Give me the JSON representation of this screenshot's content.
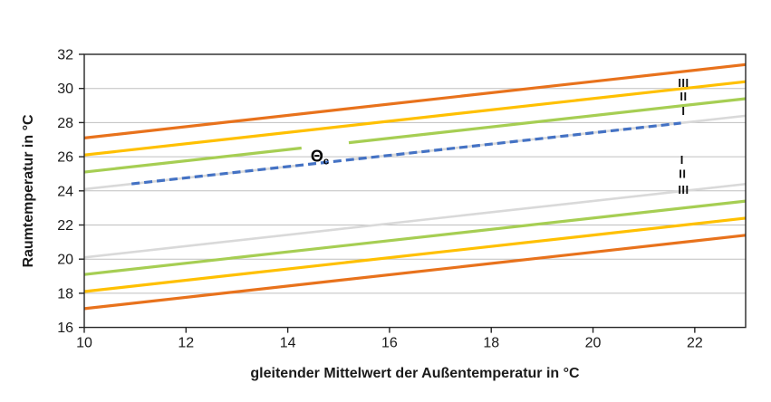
{
  "chart_data": {
    "type": "line",
    "xlabel": "gleitender Mittelwert der Außentemperatur in °C",
    "ylabel": "Raumtemperatur in °C",
    "xlim": [
      10,
      23
    ],
    "ylim": [
      16,
      32
    ],
    "xticks": [
      10,
      12,
      14,
      16,
      18,
      20,
      22
    ],
    "yticks": [
      16,
      18,
      20,
      22,
      24,
      26,
      28,
      30,
      32
    ],
    "grid": "horizontal-only",
    "legend": "none",
    "colors": {
      "orange": "#E8721C",
      "yellow": "#FFC000",
      "green": "#A6CE53",
      "gray": "#D9D9D9",
      "blue": "#4472C4",
      "gridline": "#BFBFBF",
      "axis": "#262626"
    },
    "series": [
      {
        "name": "upper-limit-orange",
        "color": "#E8721C",
        "width": 3.2,
        "dash": "",
        "segments": [
          [
            [
              10,
              27.1
            ],
            [
              23,
              31.4
            ]
          ]
        ]
      },
      {
        "name": "upper-limit-yellow",
        "color": "#FFC000",
        "width": 3.2,
        "dash": "",
        "segments": [
          [
            [
              10,
              26.1
            ],
            [
              23,
              30.4
            ]
          ]
        ]
      },
      {
        "name": "upper-limit-green",
        "color": "#A6CE53",
        "width": 3.2,
        "dash": "",
        "segments": [
          [
            [
              10,
              25.1
            ],
            [
              14.27,
              26.51
            ]
          ],
          [
            [
              15.2,
              26.82
            ],
            [
              23,
              29.4
            ]
          ]
        ]
      },
      {
        "name": "upper-limit-gray",
        "color": "#D9D9D9",
        "width": 2.6,
        "dash": "",
        "segments": [
          [
            [
              10,
              24.1
            ],
            [
              14.3,
              25.52
            ]
          ],
          [
            [
              15.2,
              25.82
            ],
            [
              23,
              28.4
            ]
          ]
        ]
      },
      {
        "name": "lower-limit-gray",
        "color": "#D9D9D9",
        "width": 2.6,
        "dash": "",
        "segments": [
          [
            [
              10,
              20.1
            ],
            [
              23,
              24.4
            ]
          ]
        ]
      },
      {
        "name": "lower-limit-green",
        "color": "#A6CE53",
        "width": 3.2,
        "dash": "",
        "segments": [
          [
            [
              10,
              19.1
            ],
            [
              23,
              23.4
            ]
          ]
        ]
      },
      {
        "name": "lower-limit-yellow",
        "color": "#FFC000",
        "width": 3.2,
        "dash": "",
        "segments": [
          [
            [
              10,
              18.1
            ],
            [
              23,
              22.4
            ]
          ]
        ]
      },
      {
        "name": "lower-limit-orange",
        "color": "#E8721C",
        "width": 3.2,
        "dash": "",
        "segments": [
          [
            [
              10,
              17.1
            ],
            [
              23,
              21.4
            ]
          ]
        ]
      },
      {
        "name": "comfort-temperature-dashed",
        "color": "#4472C4",
        "width": 3.2,
        "dash": "9 5",
        "segments": [
          [
            [
              10.93,
              24.41
            ],
            [
              21.73,
              27.97
            ]
          ]
        ]
      }
    ],
    "annotations": {
      "theta_label": {
        "text": "Θ",
        "subscript": "c",
        "x": 14.45,
        "y": 25.72
      },
      "category_markers": [
        {
          "text": "III",
          "x": 21.78,
          "y": 30.33,
          "group": "upper"
        },
        {
          "text": "II",
          "x": 21.78,
          "y": 29.54,
          "group": "upper"
        },
        {
          "text": "I",
          "x": 21.78,
          "y": 28.69,
          "group": "upper"
        },
        {
          "text": "I",
          "x": 21.75,
          "y": 25.82,
          "group": "lower"
        },
        {
          "text": "II",
          "x": 21.76,
          "y": 25.0,
          "group": "lower"
        },
        {
          "text": "III",
          "x": 21.78,
          "y": 24.08,
          "group": "lower"
        }
      ]
    }
  }
}
